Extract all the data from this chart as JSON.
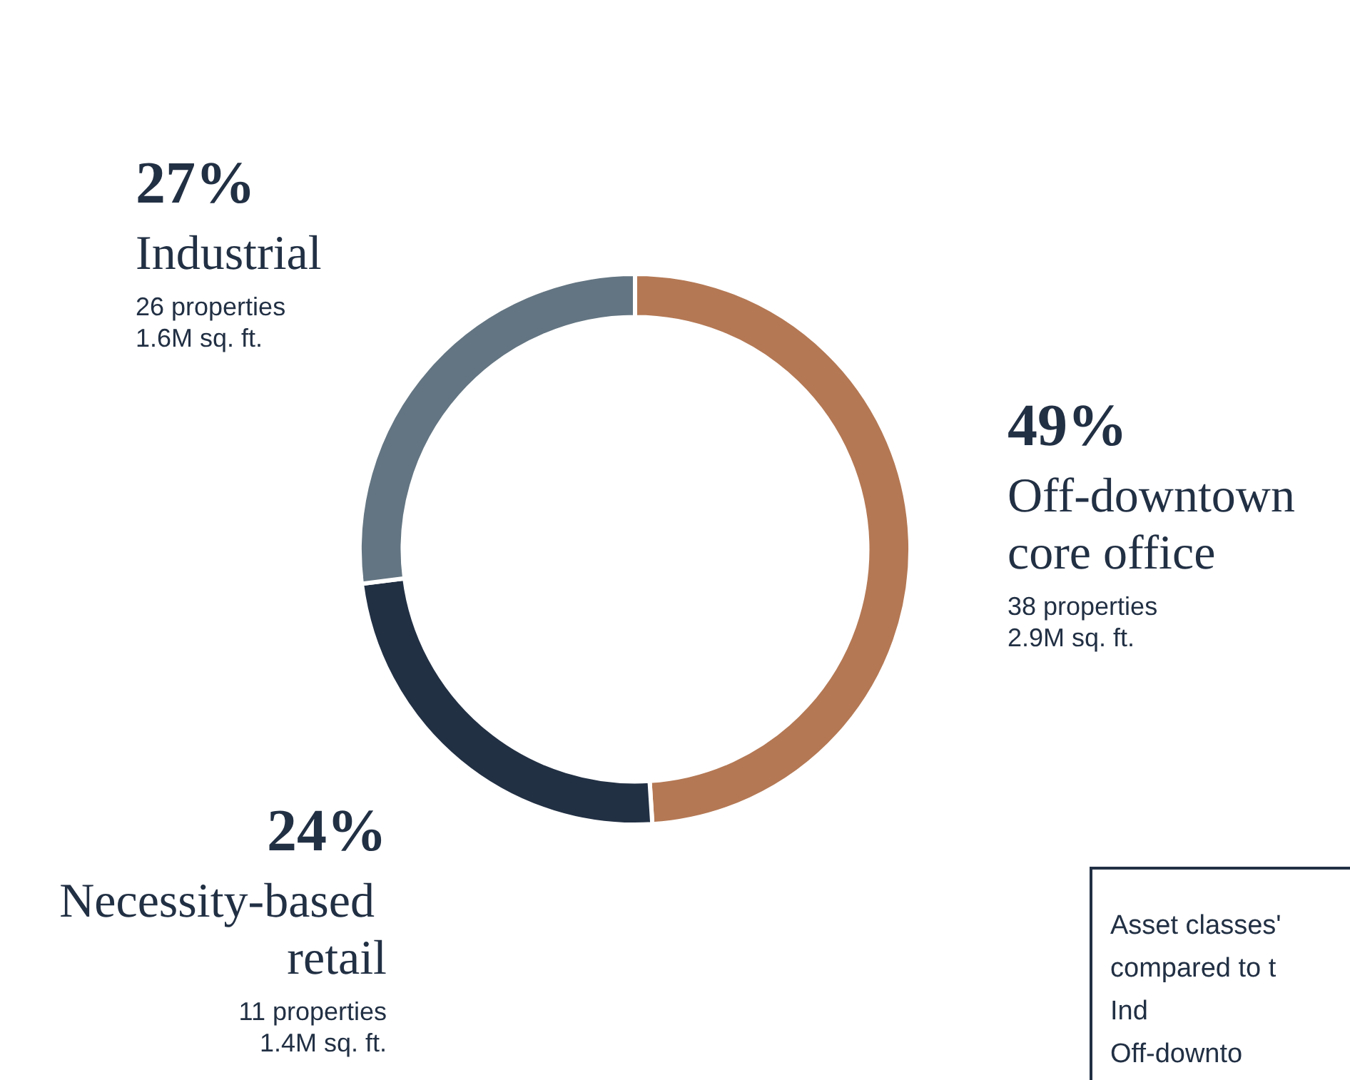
{
  "chart_data": {
    "type": "donut",
    "categories": [
      "Off-downtown core office",
      "Necessity-based retail",
      "Industrial"
    ],
    "values": [
      49,
      24,
      27
    ],
    "colors": [
      "#b47854",
      "#223044",
      "#637582"
    ],
    "value_labels": [
      "49%",
      "24%",
      "27%"
    ],
    "legend": false,
    "annotations": [
      {
        "text": "38 properties\n2.9M sq. ft.",
        "x": "Off-downtown core office"
      },
      {
        "text": "11 properties\n1.4M sq. ft.",
        "x": "Necessity-based retail"
      },
      {
        "text": "26 properties\n1.6M sq. ft.",
        "x": "Industrial"
      },
      "Asset classes'\ncompared to t\nInd\nOff-downto"
    ]
  }
}
